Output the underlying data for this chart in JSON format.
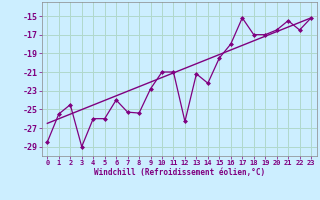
{
  "xlabel": "Windchill (Refroidissement éolien,°C)",
  "bg_color": "#cceeff",
  "grid_color": "#b0d8cc",
  "line_color": "#800080",
  "x_data": [
    0,
    1,
    2,
    3,
    4,
    5,
    6,
    7,
    8,
    9,
    10,
    11,
    12,
    13,
    14,
    15,
    16,
    17,
    18,
    19,
    20,
    21,
    22,
    23
  ],
  "y_data": [
    -28.5,
    -25.5,
    -24.5,
    -29.0,
    -26.0,
    -26.0,
    -24.0,
    -25.3,
    -25.4,
    -22.8,
    -21.0,
    -21.0,
    -26.3,
    -21.2,
    -22.2,
    -19.5,
    -18.0,
    -15.2,
    -17.0,
    -17.0,
    -16.5,
    -15.5,
    -16.5,
    -15.2
  ],
  "trend_x": [
    0,
    23
  ],
  "trend_y": [
    -26.5,
    -15.2
  ],
  "yticks": [
    -29,
    -27,
    -25,
    -23,
    -21,
    -19,
    -17,
    -15
  ],
  "xticks": [
    0,
    1,
    2,
    3,
    4,
    5,
    6,
    7,
    8,
    9,
    10,
    11,
    12,
    13,
    14,
    15,
    16,
    17,
    18,
    19,
    20,
    21,
    22,
    23
  ],
  "ylim": [
    -30.0,
    -13.5
  ],
  "xlim": [
    -0.5,
    23.5
  ]
}
